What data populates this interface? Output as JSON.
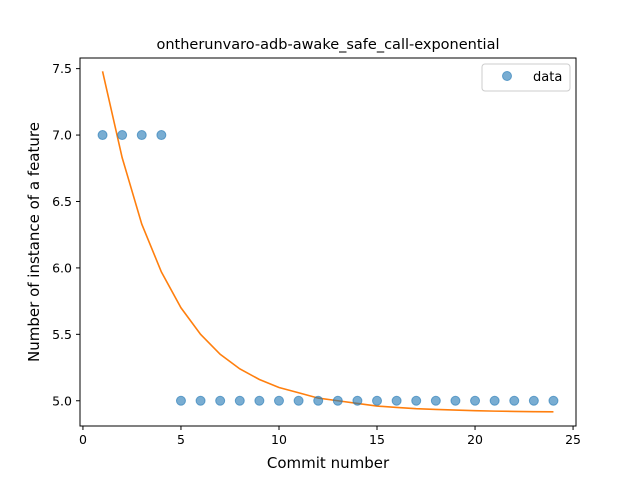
{
  "chart_data": {
    "type": "scatter",
    "title": "ontherunvaro-adb-awake_safe_call-exponential",
    "xlabel": "Commit number",
    "ylabel": "Number of instance of a feature",
    "xlim": [
      -0.15,
      25.15
    ],
    "ylim": [
      4.81,
      7.58
    ],
    "xticks": [
      0,
      5,
      10,
      15,
      20,
      25
    ],
    "xtick_labels": [
      "0",
      "5",
      "10",
      "15",
      "20",
      "25"
    ],
    "yticks": [
      5.0,
      5.5,
      6.0,
      6.5,
      7.0,
      7.5
    ],
    "ytick_labels": [
      "5.0",
      "5.5",
      "6.0",
      "6.5",
      "7.0",
      "7.5"
    ],
    "grid": false,
    "legend": {
      "position": "top-right",
      "entries": [
        "data"
      ]
    },
    "series": [
      {
        "name": "data",
        "kind": "scatter",
        "color": "#1f77b4",
        "x": [
          1,
          2,
          3,
          4,
          5,
          6,
          7,
          8,
          9,
          10,
          11,
          12,
          13,
          14,
          15,
          16,
          17,
          18,
          19,
          20,
          21,
          22,
          23,
          24
        ],
        "y": [
          7,
          7,
          7,
          7,
          5,
          5,
          5,
          5,
          5,
          5,
          5,
          5,
          5,
          5,
          5,
          5,
          5,
          5,
          5,
          5,
          5,
          5,
          5,
          5
        ]
      },
      {
        "kind": "line",
        "color": "#ff7f0e",
        "x": [
          1,
          2,
          3,
          4,
          5,
          6,
          7,
          8,
          9,
          10,
          11,
          12,
          13,
          14,
          15,
          16,
          17,
          18,
          19,
          20,
          21,
          22,
          23,
          24
        ],
        "y": [
          7.48,
          6.83,
          6.33,
          5.97,
          5.7,
          5.5,
          5.35,
          5.24,
          5.16,
          5.1,
          5.06,
          5.02,
          5.0,
          4.98,
          4.96,
          4.95,
          4.94,
          4.935,
          4.93,
          4.925,
          4.922,
          4.92,
          4.918,
          4.917
        ]
      }
    ]
  }
}
